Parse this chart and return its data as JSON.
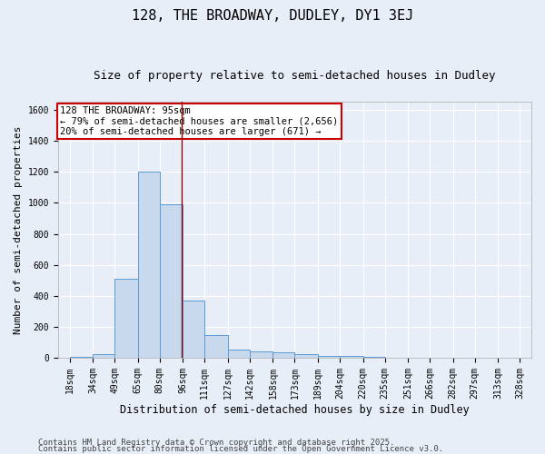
{
  "title1": "128, THE BROADWAY, DUDLEY, DY1 3EJ",
  "title2": "Size of property relative to semi-detached houses in Dudley",
  "xlabel": "Distribution of semi-detached houses by size in Dudley",
  "ylabel": "Number of semi-detached properties",
  "footer1": "Contains HM Land Registry data © Crown copyright and database right 2025.",
  "footer2": "Contains public sector information licensed under the Open Government Licence v3.0.",
  "annotation_line1": "128 THE BROADWAY: 95sqm",
  "annotation_line2": "← 79% of semi-detached houses are smaller (2,656)",
  "annotation_line3": "20% of semi-detached houses are larger (671) →",
  "property_size": 95,
  "bar_left_edges": [
    18,
    34,
    49,
    65,
    80,
    96,
    111,
    127,
    142,
    158,
    173,
    189,
    204,
    220,
    235,
    251,
    266,
    282,
    297,
    313
  ],
  "bar_widths": [
    16,
    15,
    16,
    15,
    16,
    15,
    16,
    15,
    16,
    15,
    16,
    15,
    16,
    15,
    16,
    15,
    16,
    15,
    16,
    15
  ],
  "bar_heights": [
    5,
    25,
    510,
    1200,
    990,
    370,
    145,
    52,
    38,
    33,
    22,
    14,
    10,
    4,
    2,
    1,
    1,
    1,
    0,
    0
  ],
  "bar_color": "#c9d9ed",
  "bar_edge_color": "#5b9bd5",
  "vline_x": 95,
  "vline_color": "#8b0000",
  "ylim": [
    0,
    1650
  ],
  "xlim": [
    10,
    336
  ],
  "xtick_labels": [
    "18sqm",
    "34sqm",
    "49sqm",
    "65sqm",
    "80sqm",
    "96sqm",
    "111sqm",
    "127sqm",
    "142sqm",
    "158sqm",
    "173sqm",
    "189sqm",
    "204sqm",
    "220sqm",
    "235sqm",
    "251sqm",
    "266sqm",
    "282sqm",
    "297sqm",
    "313sqm",
    "328sqm"
  ],
  "xtick_positions": [
    18,
    34,
    49,
    65,
    80,
    96,
    111,
    127,
    142,
    158,
    173,
    189,
    204,
    220,
    235,
    251,
    266,
    282,
    297,
    313,
    328
  ],
  "ytick_positions": [
    0,
    200,
    400,
    600,
    800,
    1000,
    1200,
    1400,
    1600
  ],
  "bg_color": "#e8eef8",
  "plot_bg_color": "#e8eef8",
  "grid_color": "#ffffff",
  "annotation_box_edge": "#cc0000",
  "annotation_box_face": "#ffffff",
  "title1_fontsize": 11,
  "title2_fontsize": 9,
  "axis_label_fontsize": 8,
  "tick_fontsize": 7,
  "annotation_fontsize": 7.5,
  "footer_fontsize": 6.5
}
